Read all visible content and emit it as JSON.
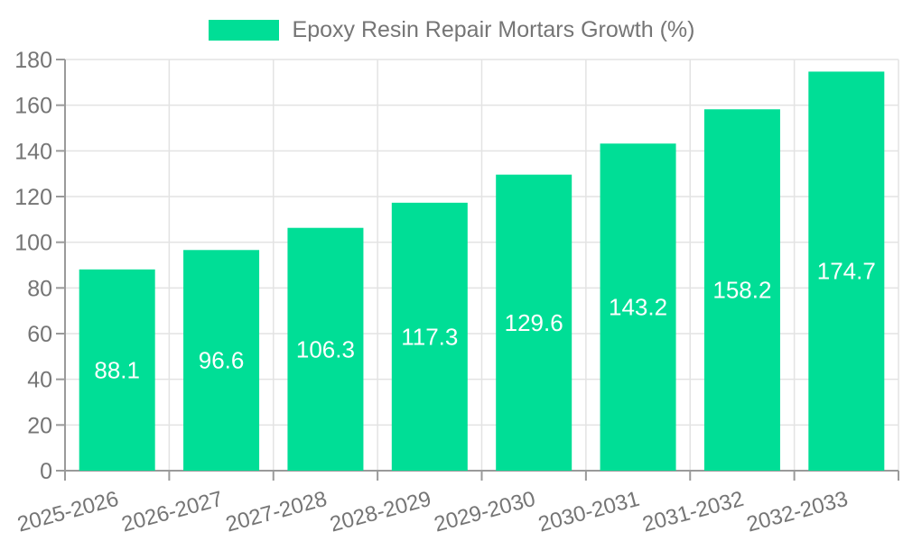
{
  "legend": {
    "label": "Epoxy Resin Repair Mortars Growth (%)"
  },
  "colors": {
    "bar": "#00de96",
    "axis_line": "#9a9a9a",
    "gridline": "#e3e3e3",
    "tick_text": "#757575",
    "value_label_text": "#ffffff",
    "background": "#ffffff"
  },
  "chart_data": {
    "type": "bar",
    "title": "Epoxy Resin Repair Mortars Growth (%)",
    "categories": [
      "2025-2026",
      "2026-2027",
      "2027-2028",
      "2028-2029",
      "2029-2030",
      "2030-2031",
      "2031-2032",
      "2032-2033"
    ],
    "series": [
      {
        "name": "Epoxy Resin Repair Mortars Growth (%)",
        "values": [
          88.1,
          96.6,
          106.3,
          117.3,
          129.6,
          143.2,
          158.2,
          174.7
        ]
      }
    ],
    "value_label_format": "one-decimal",
    "value_label_position": "inside-middle",
    "xlabel": "",
    "ylabel": "",
    "ylim": [
      0,
      180
    ],
    "ytick_step": 20,
    "yticks": [
      0,
      20,
      40,
      60,
      80,
      100,
      120,
      140,
      160,
      180
    ],
    "grid": true,
    "x_label_rotation_deg": -15,
    "legend_position": "top-center"
  }
}
